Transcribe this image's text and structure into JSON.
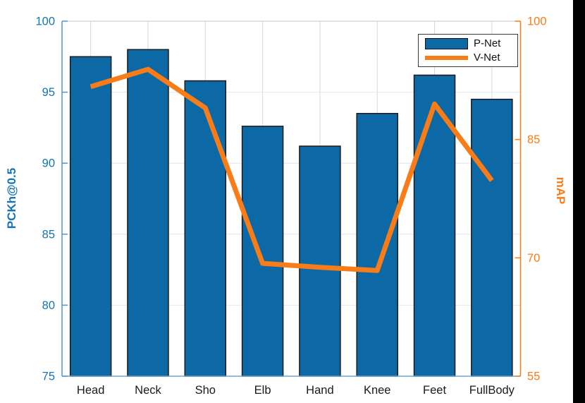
{
  "chart_data": {
    "type": "bar-line-combo",
    "categories": [
      "Head",
      "Neck",
      "Sho",
      "Elb",
      "Hand",
      "Knee",
      "Feet",
      "FullBody"
    ],
    "series": [
      {
        "name": "P-Net",
        "type": "bar",
        "axis": "left",
        "values": [
          97.5,
          98.0,
          95.8,
          92.6,
          91.2,
          93.5,
          96.2,
          94.5
        ],
        "color": "#0d69a5",
        "edge_color": "#1a1a1a"
      },
      {
        "name": "V-Net",
        "type": "line",
        "axis": "right",
        "values": [
          91.7,
          93.9,
          89.0,
          69.3,
          68.8,
          68.4,
          89.5,
          79.8
        ],
        "color": "#f87d18",
        "line_width": 7
      }
    ],
    "left_axis": {
      "label": "PCKh@0.5",
      "ticks": [
        75,
        80,
        85,
        90,
        95,
        100
      ],
      "range": [
        75,
        100
      ],
      "text_color": "#1574b4",
      "spine_color": "#4d97c9"
    },
    "right_axis": {
      "label": "mAP",
      "ticks": [
        55,
        70,
        85,
        100
      ],
      "range": [
        55,
        100
      ],
      "text_color": "#f87d18",
      "spine_color": "#f87d18"
    },
    "x_axis": {
      "tick_labels": [
        "Head",
        "Neck",
        "Sho",
        "Elb",
        "Hand",
        "Knee",
        "Feet",
        "FullBody"
      ],
      "text_color": "#1a1a1a",
      "spine_color": "#6fa9d2"
    },
    "legend": {
      "position": "top-right",
      "entries": [
        "P-Net",
        "V-Net"
      ]
    },
    "grid": true,
    "grid_color_h": "#e2e6ed",
    "grid_color_v": "#d8d8dd",
    "top_spine_color": "#c6c6cc"
  }
}
